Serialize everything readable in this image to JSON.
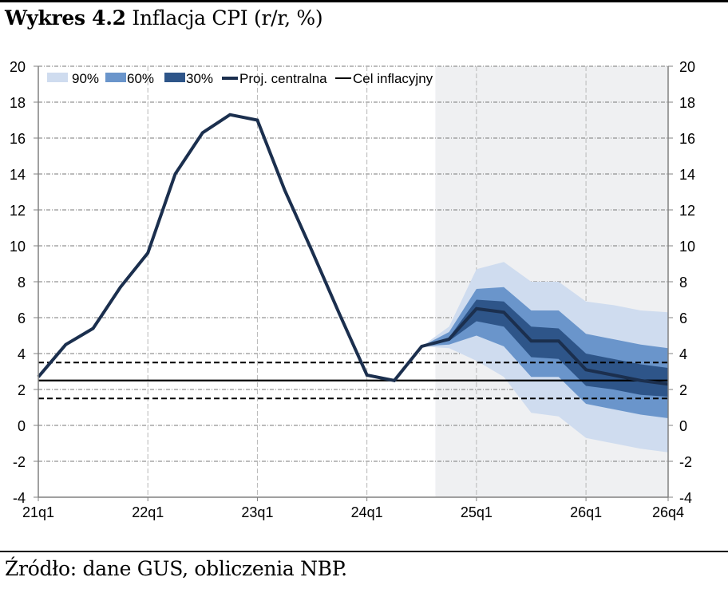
{
  "header": {
    "title_bold": "Wykres 4.2",
    "title_rest": " Inflacja CPI (r/r, %)"
  },
  "footer": {
    "source": "Źródło: dane GUS, obliczenia NBP."
  },
  "colors": {
    "band90": "#cfdcef",
    "band60": "#6a95cb",
    "band30": "#2e5589",
    "central": "#1b2f4e",
    "target": "#000000",
    "projection_bg": "#eff0f2"
  },
  "chart_data": {
    "type": "line",
    "title": "Inflacja CPI (r/r, %)",
    "xlabel": "",
    "ylabel": "",
    "ylim": [
      -4,
      20
    ],
    "yticks": [
      20,
      18,
      16,
      14,
      12,
      10,
      8,
      6,
      4,
      2,
      0,
      -2,
      -4
    ],
    "ytick_labels": [
      "20",
      "18",
      "16",
      "14",
      "12",
      "10",
      "8",
      "6",
      "4",
      "2",
      "0",
      "-2",
      "-4"
    ],
    "grid": true,
    "legend_position": "top",
    "quarters": [
      "21q1",
      "21q2",
      "21q3",
      "21q4",
      "22q1",
      "22q2",
      "22q3",
      "22q4",
      "23q1",
      "23q2",
      "23q3",
      "23q4",
      "24q1",
      "24q2",
      "24q3",
      "24q4",
      "25q1",
      "25q2",
      "25q3",
      "25q4",
      "26q1",
      "26q2",
      "26q3",
      "26q4"
    ],
    "xtick_labels": [
      {
        "label": "21q1",
        "quarter": "21q1"
      },
      {
        "label": "22q1",
        "quarter": "22q1"
      },
      {
        "label": "23q1",
        "quarter": "23q1"
      },
      {
        "label": "24q1",
        "quarter": "24q1"
      },
      {
        "label": "25q1",
        "quarter": "25q1"
      },
      {
        "label": "26q1",
        "quarter": "26q1"
      },
      {
        "label": "26q4",
        "quarter": "26q4"
      }
    ],
    "projection_start_quarter": "24q4",
    "legend": [
      {
        "label": "90%",
        "kind": "band90"
      },
      {
        "label": "60%",
        "kind": "band60"
      },
      {
        "label": "30%",
        "kind": "band30"
      },
      {
        "label": "Proj. centralna",
        "kind": "central"
      },
      {
        "label": "Cel inflacyjny",
        "kind": "target"
      }
    ],
    "series": [
      {
        "name": "Proj. centralna",
        "values": [
          2.7,
          4.5,
          5.4,
          7.7,
          9.6,
          14.0,
          16.3,
          17.3,
          17.0,
          13.1,
          9.7,
          6.2,
          2.8,
          2.5,
          4.4,
          4.8,
          6.5,
          6.3,
          4.7,
          4.7,
          3.1,
          2.8,
          2.5,
          2.3
        ]
      }
    ],
    "fan": {
      "quarters": [
        "24q3",
        "24q4",
        "25q1",
        "25q2",
        "25q3",
        "25q4",
        "26q1",
        "26q2",
        "26q3",
        "26q4"
      ],
      "band90": {
        "upper": [
          4.4,
          5.5,
          8.7,
          9.1,
          8.0,
          8.0,
          6.9,
          6.7,
          6.4,
          6.3
        ],
        "lower": [
          4.4,
          4.3,
          3.6,
          2.7,
          0.7,
          0.5,
          -0.7,
          -1.0,
          -1.3,
          -1.5
        ]
      },
      "band60": {
        "upper": [
          4.4,
          5.2,
          7.6,
          7.7,
          6.4,
          6.4,
          5.1,
          4.8,
          4.5,
          4.3
        ],
        "lower": [
          4.4,
          4.5,
          5.0,
          4.4,
          2.7,
          2.7,
          1.2,
          0.9,
          0.6,
          0.4
        ]
      },
      "band30": {
        "upper": [
          4.4,
          4.9,
          7.0,
          6.9,
          5.5,
          5.4,
          4.0,
          3.7,
          3.4,
          3.2
        ],
        "lower": [
          4.4,
          4.7,
          5.8,
          5.5,
          3.8,
          3.7,
          2.2,
          2.0,
          1.7,
          1.6
        ]
      }
    },
    "reference_lines": [
      {
        "name": "Cel inflacyjny",
        "value": 2.5,
        "style": "solid"
      },
      {
        "name": "upper tolerance",
        "value": 3.5,
        "style": "dashed"
      },
      {
        "name": "lower tolerance",
        "value": 1.5,
        "style": "dashed"
      }
    ]
  }
}
